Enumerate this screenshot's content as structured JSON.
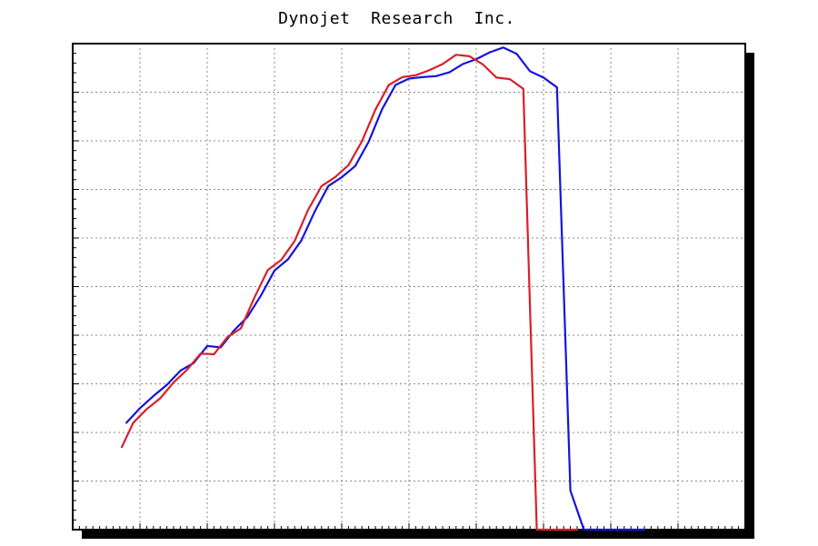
{
  "chart_data": {
    "type": "line",
    "title": "Dynojet  Research  Inc.",
    "xlabel": "",
    "ylabel": "",
    "xlim": [
      0,
      10
    ],
    "ylim": [
      0,
      10
    ],
    "grid": true,
    "legend": "none",
    "series": [
      {
        "color": "#1515d8",
        "x": [
          0.8,
          1.0,
          1.2,
          1.4,
          1.6,
          1.8,
          2.0,
          2.2,
          2.4,
          2.6,
          2.8,
          3.0,
          3.2,
          3.4,
          3.6,
          3.8,
          4.0,
          4.2,
          4.4,
          4.6,
          4.8,
          5.0,
          5.2,
          5.4,
          5.6,
          5.8,
          6.0,
          6.2,
          6.4,
          6.6,
          6.8,
          7.0,
          7.2,
          7.4,
          7.6,
          7.8,
          8.0,
          8.15,
          8.25,
          8.35,
          8.4,
          8.45,
          8.5
        ],
        "y": [
          2.2,
          2.5,
          2.75,
          2.98,
          3.27,
          3.43,
          3.78,
          3.75,
          4.1,
          4.38,
          4.82,
          5.33,
          5.56,
          5.95,
          6.55,
          7.07,
          7.25,
          7.48,
          7.98,
          8.65,
          9.15,
          9.28,
          9.31,
          9.33,
          9.41,
          9.58,
          9.68,
          9.82,
          9.92,
          9.79,
          9.43,
          9.3,
          9.1,
          0.8,
          0.0,
          0.0,
          0.0,
          0.0,
          0.0,
          0.0,
          0.0,
          0.0,
          0.0
        ]
      },
      {
        "color": "#d8202a",
        "x": [
          0.73,
          0.9,
          1.1,
          1.3,
          1.5,
          1.7,
          1.9,
          2.1,
          2.3,
          2.5,
          2.7,
          2.9,
          3.1,
          3.3,
          3.5,
          3.7,
          3.9,
          4.1,
          4.3,
          4.5,
          4.7,
          4.9,
          5.1,
          5.3,
          5.5,
          5.7,
          5.9,
          6.1,
          6.3,
          6.5,
          6.7,
          6.9,
          7.1,
          7.3,
          7.5
        ],
        "y": [
          1.7,
          2.2,
          2.48,
          2.7,
          3.03,
          3.29,
          3.62,
          3.61,
          3.96,
          4.14,
          4.77,
          5.34,
          5.55,
          5.94,
          6.58,
          7.07,
          7.25,
          7.5,
          7.99,
          8.64,
          9.15,
          9.31,
          9.35,
          9.45,
          9.58,
          9.77,
          9.74,
          9.57,
          9.3,
          9.27,
          9.07,
          0.0,
          0.0,
          0.0,
          0.0
        ]
      }
    ]
  }
}
